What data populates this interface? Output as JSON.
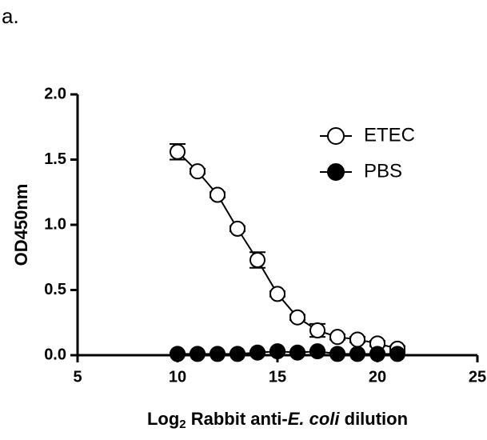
{
  "panel_label": "a.",
  "chart_data": {
    "type": "line",
    "ylabel": "OD450nm",
    "xlabel_parts": [
      "Log",
      "2",
      " Rabbit anti-",
      "E. coli",
      " dilution"
    ],
    "x": [
      10,
      11,
      12,
      13,
      14,
      15,
      16,
      17,
      18,
      19,
      20,
      21
    ],
    "series": [
      {
        "name": "ETEC",
        "color": "#000000",
        "filled": false,
        "values": [
          1.56,
          1.41,
          1.23,
          0.97,
          0.73,
          0.47,
          0.29,
          0.19,
          0.14,
          0.12,
          0.09,
          0.05
        ],
        "errors": [
          0.06,
          0.02,
          0.02,
          0.02,
          0.06,
          0.02,
          0.02,
          0.05,
          0.02,
          0.02,
          0.02,
          0.02
        ]
      },
      {
        "name": "PBS",
        "color": "#000000",
        "filled": true,
        "values": [
          0.01,
          0.01,
          0.01,
          0.01,
          0.02,
          0.03,
          0.02,
          0.03,
          0.01,
          0.01,
          0.01,
          0.01
        ],
        "errors": [
          0.01,
          0.01,
          0.01,
          0.01,
          0.01,
          0.01,
          0.01,
          0.01,
          0.01,
          0.01,
          0.01,
          0.01
        ]
      }
    ],
    "xlim": [
      5,
      25
    ],
    "xticks": [
      5,
      10,
      15,
      20,
      25
    ],
    "ylim": [
      0,
      2
    ],
    "yticks": [
      {
        "value": 0,
        "label": "0.0"
      },
      {
        "value": 0.5,
        "label": "0.5"
      },
      {
        "value": 1,
        "label": "1.0"
      },
      {
        "value": 1.5,
        "label": "1.5"
      },
      {
        "value": 2,
        "label": "2.0"
      }
    ],
    "legend": "upper right"
  }
}
